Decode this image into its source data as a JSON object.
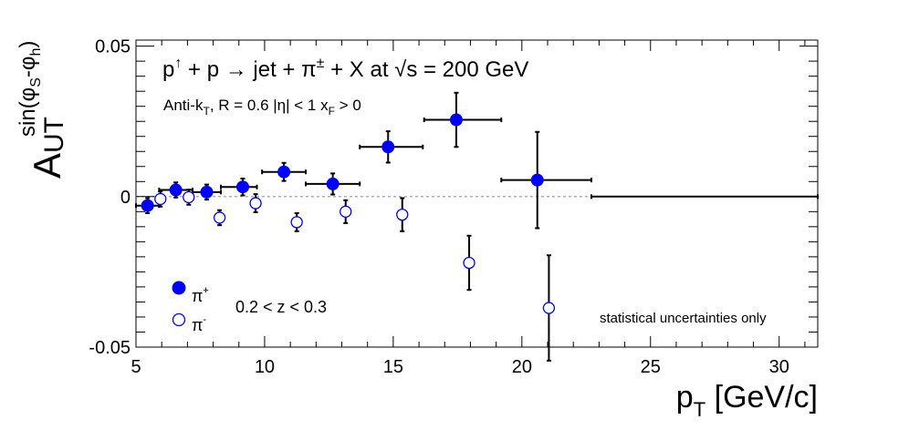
{
  "header": {
    "title_text": "p↑ + p → jet + π± + X at  √s = 200 GeV",
    "subtitle_text": "Anti-kT, R = 0.6   |η| < 1   xF > 0",
    "note": "statistical uncertainties only",
    "z_range": "0.2 < z < 0.3",
    "note_color": "#dd0000"
  },
  "axes": {
    "xlabel": "pT [GeV/c]",
    "ylabel": "AUT sin(φS-φh)"
  },
  "legend": [
    {
      "label": "π+",
      "marker": "filled-circle"
    },
    {
      "label": "π-",
      "marker": "open-circle"
    }
  ],
  "chart_data": {
    "type": "scatter",
    "title": "p↑ + p → jet + π± + X at √s = 200 GeV",
    "xlabel": "pT [GeV/c]",
    "ylabel": "AUT sin(φS-φh)",
    "xlim": [
      5,
      31.5
    ],
    "ylim": [
      -0.05,
      0.052
    ],
    "xticks": [
      5,
      10,
      15,
      20,
      25,
      30
    ],
    "yticks": [
      -0.05,
      0,
      0.05
    ],
    "zero_line": true,
    "legend_position": "bottom-left",
    "series": [
      {
        "name": "π+",
        "marker": "filled",
        "color": "#0000ff",
        "points": [
          {
            "x": 5.45,
            "y": -0.003,
            "xerr_low": 0.45,
            "xerr_high": 0.45,
            "yerr": 0.0025
          },
          {
            "x": 6.55,
            "y": 0.0022,
            "xerr_low": 0.65,
            "xerr_high": 0.65,
            "yerr": 0.0025
          },
          {
            "x": 7.75,
            "y": 0.0015,
            "xerr_low": 0.55,
            "xerr_high": 0.55,
            "yerr": 0.0025
          },
          {
            "x": 9.15,
            "y": 0.0032,
            "xerr_low": 0.85,
            "xerr_high": 0.55,
            "yerr": 0.0028
          },
          {
            "x": 10.75,
            "y": 0.0082,
            "xerr_low": 0.85,
            "xerr_high": 0.85,
            "yerr": 0.003
          },
          {
            "x": 12.65,
            "y": 0.0042,
            "xerr_low": 1.05,
            "xerr_high": 1.05,
            "yerr": 0.0035
          },
          {
            "x": 14.8,
            "y": 0.0165,
            "xerr_low": 1.1,
            "xerr_high": 1.35,
            "yerr": 0.0052
          },
          {
            "x": 17.45,
            "y": 0.0255,
            "xerr_low": 1.25,
            "xerr_high": 1.75,
            "yerr": 0.009
          },
          {
            "x": 20.6,
            "y": 0.0055,
            "xerr_low": 1.4,
            "xerr_high": 2.1,
            "yerr": 0.016
          },
          {
            "x": 27.1,
            "y": 0.0,
            "xerr_low": 4.4,
            "xerr_high": 4.4,
            "yerr": 0.0
          }
        ]
      },
      {
        "name": "π-",
        "marker": "open",
        "color": "#0000ff",
        "points": [
          {
            "x": 5.95,
            "y": -0.0008,
            "yerr": 0.0025
          },
          {
            "x": 7.05,
            "y": -0.0002,
            "yerr": 0.0025
          },
          {
            "x": 8.25,
            "y": -0.007,
            "yerr": 0.0025
          },
          {
            "x": 9.65,
            "y": -0.0022,
            "yerr": 0.003
          },
          {
            "x": 11.25,
            "y": -0.0085,
            "yerr": 0.003
          },
          {
            "x": 13.15,
            "y": -0.005,
            "yerr": 0.0038
          },
          {
            "x": 15.35,
            "y": -0.006,
            "yerr": 0.0055
          },
          {
            "x": 17.95,
            "y": -0.022,
            "yerr": 0.009
          },
          {
            "x": 21.05,
            "y": -0.037,
            "yerr": 0.0175
          }
        ]
      }
    ]
  }
}
